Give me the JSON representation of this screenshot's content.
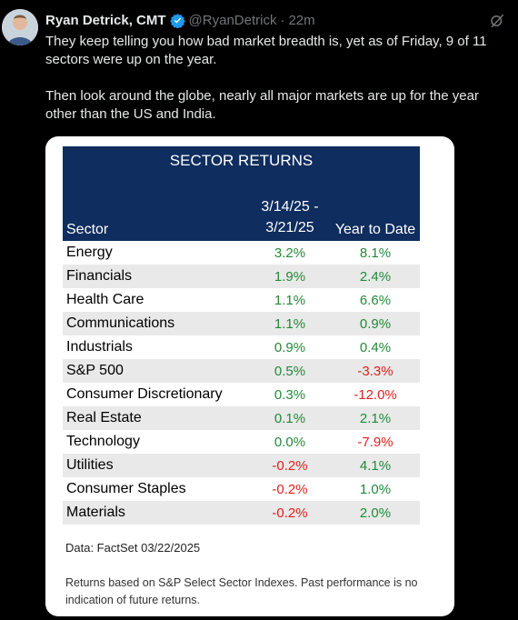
{
  "tweet": {
    "author_name": "Ryan Detrick, CMT",
    "handle": "@RyanDetrick",
    "separator": "·",
    "time": "22m",
    "text_p1": "They keep telling you how bad market breadth is, yet as of Friday, 9 of 11 sectors were up on the year.",
    "text_p2": "Then look around the globe, nearly all major markets are up for the year other than the US and India."
  },
  "icons": {
    "verified": "verified-badge-icon",
    "grok": "grok-icon",
    "more": "more-icon"
  },
  "colors": {
    "header_bg": "#0f2d5e",
    "positive": "#218a3a",
    "negative": "#e02020",
    "verified": "#1d9bf0"
  },
  "table": {
    "title": "SECTOR RETURNS",
    "col_sector": "Sector",
    "col_week_line1": "3/14/25 -",
    "col_week_line2": "3/21/25",
    "col_ytd": "Year to Date",
    "rows": [
      {
        "sector": "Energy",
        "week": "3.2%",
        "ytd": "8.1%"
      },
      {
        "sector": "Financials",
        "week": "1.9%",
        "ytd": "2.4%"
      },
      {
        "sector": "Health Care",
        "week": "1.1%",
        "ytd": "6.6%"
      },
      {
        "sector": "Communications",
        "week": "1.1%",
        "ytd": "0.9%"
      },
      {
        "sector": "Industrials",
        "week": "0.9%",
        "ytd": "0.4%"
      },
      {
        "sector": "S&P 500",
        "week": "0.5%",
        "ytd": "-3.3%"
      },
      {
        "sector": "Consumer Discretionary",
        "week": "0.3%",
        "ytd": "-12.0%"
      },
      {
        "sector": "Real Estate",
        "week": "0.1%",
        "ytd": "2.1%"
      },
      {
        "sector": "Technology",
        "week": "0.0%",
        "ytd": "-7.9%"
      },
      {
        "sector": "Utilities",
        "week": "-0.2%",
        "ytd": "4.1%"
      },
      {
        "sector": "Consumer Staples",
        "week": "-0.2%",
        "ytd": "1.0%"
      },
      {
        "sector": "Materials",
        "week": "-0.2%",
        "ytd": "2.0%"
      }
    ],
    "source": "Data: FactSet 03/22/2025",
    "note": "Returns based on S&P Select Sector Indexes. Past performance is no indication of future returns."
  }
}
